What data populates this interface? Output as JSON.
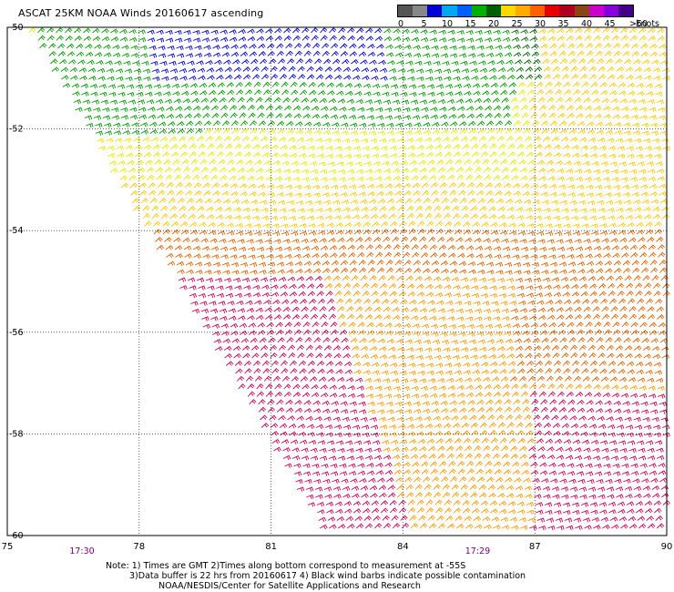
{
  "title": "ASCAT 25KM NOAA Winds 20160617 ascending",
  "legend": {
    "colors": [
      "#555555",
      "#888888",
      "#0000d8",
      "#00a8f0",
      "#0060ff",
      "#00b000",
      "#006000",
      "#ffd800",
      "#ffaa00",
      "#ff6000",
      "#e80000",
      "#b00020",
      "#8b4513",
      "#cc00cc",
      "#8800dd",
      "#440088"
    ],
    "tick_labels": [
      "0",
      "5",
      "10",
      "15",
      "20",
      "25",
      "30",
      "35",
      "40",
      "45",
      ">50"
    ],
    "units": "knots"
  },
  "map": {
    "lat_labels": [
      "-50",
      "-52",
      "-54",
      "-56",
      "-58",
      "-60"
    ],
    "lon_labels": [
      "75",
      "78",
      "81",
      "84",
      "87",
      "90"
    ],
    "lat_range": [
      -60,
      -50
    ],
    "lon_range": [
      75,
      90
    ],
    "time_labels": [
      {
        "text": "17:30",
        "lon": 76.7
      },
      {
        "text": "17:29",
        "lon": 85.7
      }
    ],
    "barb_colors": {
      "15": "#0000cc",
      "20": "#009900",
      "20b": "#006600",
      "25": "#e8e800",
      "30": "#ffc800",
      "35": "#ff9900",
      "40": "#e06000",
      "45": "#cc3030",
      "50": "#c8005a"
    }
  },
  "notes": {
    "line1": "Note: 1) Times are GMT 2)Times along bottom correspond to measurement at -55S",
    "line2": "3)Data buffer is 22 hrs from 20160617 4) Black wind barbs indicate possible contamination",
    "line3": "NOAA/NESDIS/Center for Satellite Applications and Research"
  }
}
